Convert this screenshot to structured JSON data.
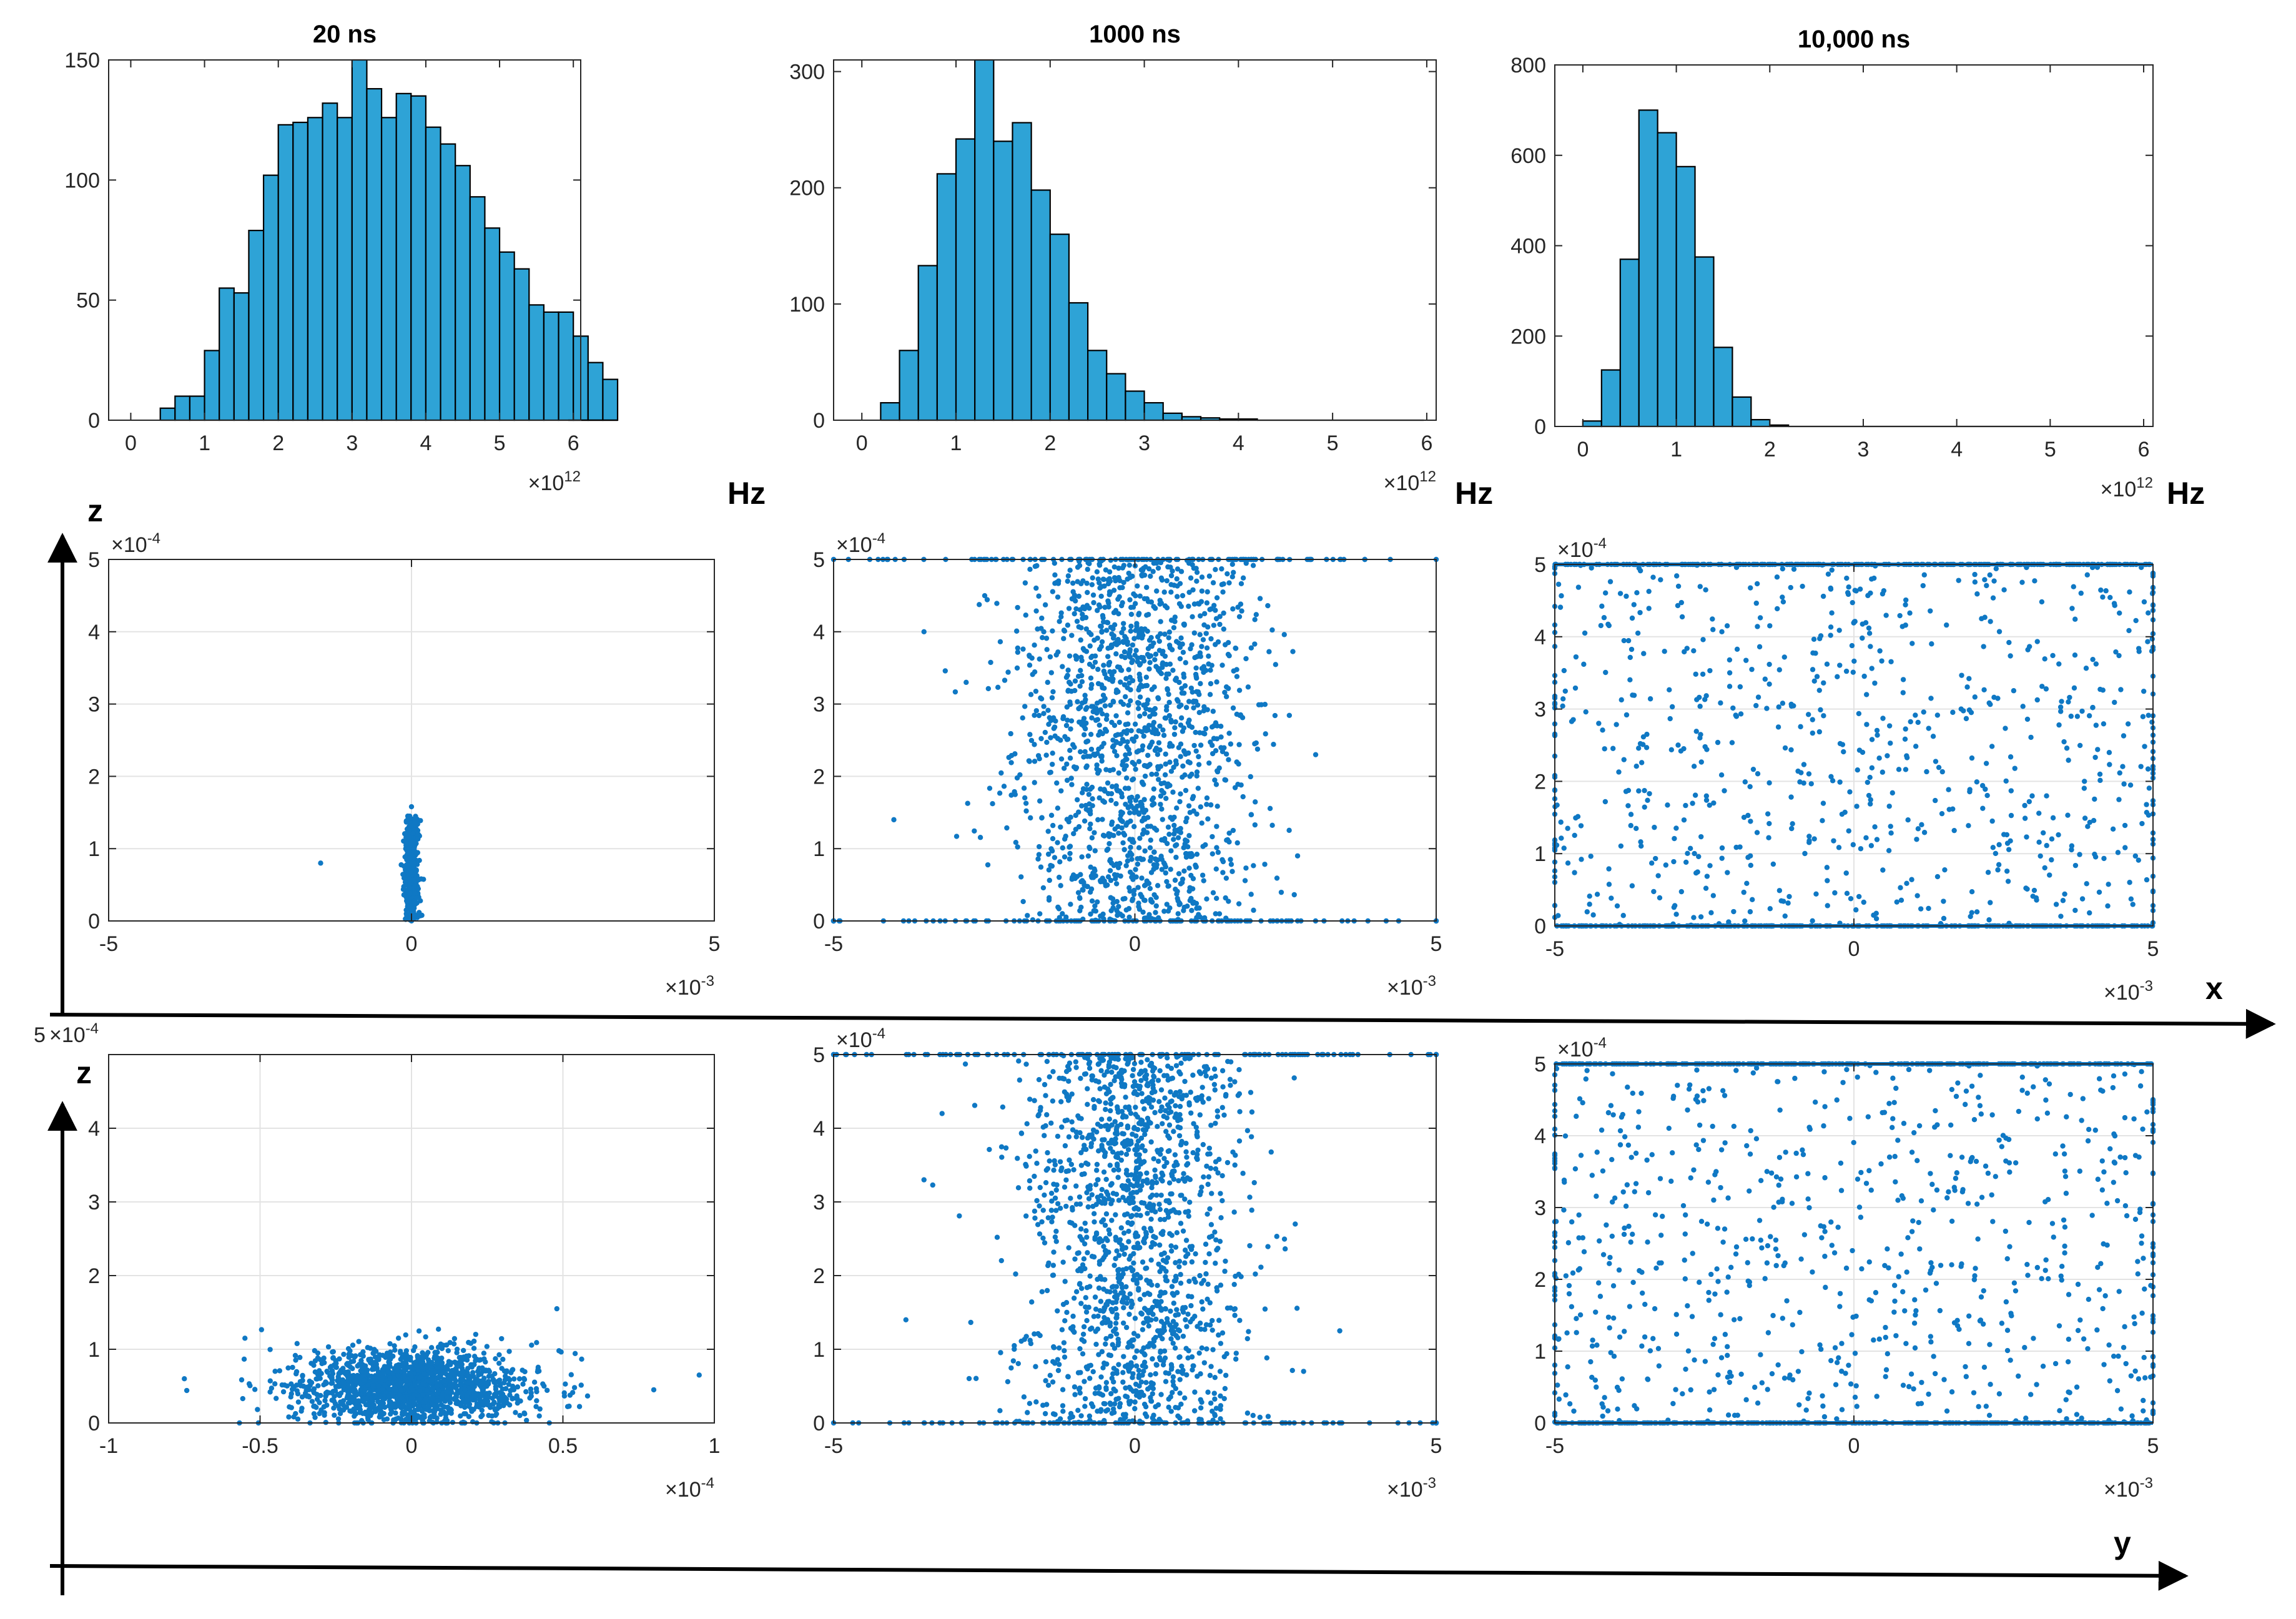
{
  "figure": {
    "unit_label": "Hz",
    "row_labels": {
      "x_axis": "x",
      "y_axis": "y",
      "z_axis": "z"
    }
  },
  "colors": {
    "bar_fill": "#2ea3d6",
    "point": "#0f78c4",
    "grid": "#e3e3e3",
    "frame": "#262626"
  },
  "chart_data": [
    {
      "id": "h20",
      "type": "bar",
      "title": "20 ns",
      "xlabel": "",
      "ylabel": "",
      "xlim": [
        -0.3,
        6.1
      ],
      "ylim": [
        0,
        150
      ],
      "bin_start": 0.4,
      "bin_width": 0.2,
      "values": [
        5,
        10,
        10,
        29,
        55,
        53,
        79,
        102,
        123,
        124,
        126,
        132,
        126,
        150,
        138,
        126,
        136,
        135,
        122,
        115,
        106,
        93,
        80,
        70,
        63,
        48,
        45,
        45,
        35,
        24,
        17
      ],
      "xticks": [
        0,
        1,
        2,
        3,
        4,
        5,
        6
      ],
      "yticks": [
        0,
        50,
        100,
        150
      ],
      "xticklabels": [
        "0",
        "1",
        "2",
        "3",
        "4",
        "5",
        "6"
      ],
      "yticklabels": [
        "0",
        "50",
        "100",
        "150"
      ],
      "x_multiplier": {
        "base": "×10",
        "exp": "12"
      },
      "grid": false
    },
    {
      "id": "h1000",
      "type": "bar",
      "title": "1000 ns",
      "xlabel": "",
      "ylabel": "",
      "xlim": [
        -0.3,
        6.1
      ],
      "ylim": [
        0,
        310
      ],
      "bin_start": 0.2,
      "bin_width": 0.2,
      "values": [
        15,
        60,
        133,
        212,
        242,
        310,
        240,
        256,
        198,
        160,
        101,
        60,
        40,
        25,
        15,
        6,
        3,
        2,
        1,
        1
      ],
      "xticks": [
        0,
        1,
        2,
        3,
        4,
        5,
        6
      ],
      "yticks": [
        0,
        100,
        200,
        300
      ],
      "xticklabels": [
        "0",
        "1",
        "2",
        "3",
        "4",
        "5",
        "6"
      ],
      "yticklabels": [
        "0",
        "100",
        "200",
        "300"
      ],
      "x_multiplier": {
        "base": "×10",
        "exp": "12"
      },
      "grid": false
    },
    {
      "id": "h10000",
      "type": "bar",
      "title": "10,000 ns",
      "xlabel": "",
      "ylabel": "",
      "xlim": [
        -0.3,
        6.1
      ],
      "ylim": [
        0,
        800
      ],
      "bin_start": 0.0,
      "bin_width": 0.2,
      "values": [
        12,
        125,
        370,
        700,
        650,
        575,
        375,
        175,
        65,
        15,
        3
      ],
      "xticks": [
        0,
        1,
        2,
        3,
        4,
        5,
        6
      ],
      "yticks": [
        0,
        200,
        400,
        600,
        800
      ],
      "xticklabels": [
        "0",
        "1",
        "2",
        "3",
        "4",
        "5",
        "6"
      ],
      "yticklabels": [
        "0",
        "200",
        "400",
        "600",
        "800"
      ],
      "x_multiplier": {
        "base": "×10",
        "exp": "12"
      },
      "grid": false
    },
    {
      "id": "xz20",
      "type": "scatter",
      "title": "",
      "xlabel": "x",
      "ylabel": "z",
      "xlim": [
        -5,
        5
      ],
      "ylim": [
        0,
        5
      ],
      "xticks": [
        -5,
        0,
        5
      ],
      "yticks": [
        0,
        1,
        2,
        3,
        4,
        5
      ],
      "xticklabels": [
        "-5",
        "0",
        "5"
      ],
      "yticklabels": [
        "0",
        "1",
        "2",
        "3",
        "4",
        "5"
      ],
      "x_multiplier": {
        "base": "×10",
        "exp": "-3"
      },
      "y_multiplier": {
        "base": "×10",
        "exp": "-4"
      },
      "grid": true,
      "distribution": {
        "n": 420,
        "x_center": 0,
        "x_sigma": 0.06,
        "z_max": 1.45,
        "z_mode": "uniform_low",
        "outliers": [
          [
            -1.5,
            0.8
          ],
          [
            0,
            1.58
          ]
        ]
      }
    },
    {
      "id": "xz1000",
      "type": "scatter",
      "title": "",
      "xlabel": "x",
      "ylabel": "z",
      "xlim": [
        -5,
        5
      ],
      "ylim": [
        0,
        5
      ],
      "xticks": [
        -5,
        0,
        5
      ],
      "yticks": [
        0,
        1,
        2,
        3,
        4,
        5
      ],
      "xticklabels": [
        "-5",
        "0",
        "5"
      ],
      "yticklabels": [
        "0",
        "1",
        "2",
        "3",
        "4",
        "5"
      ],
      "x_multiplier": {
        "base": "×10",
        "exp": "-3"
      },
      "y_multiplier": {
        "base": "×10",
        "exp": "-4"
      },
      "grid": true,
      "distribution": {
        "n": 1500,
        "x_center": 0,
        "x_sigma": 0.95,
        "z_mode": "uniform",
        "boundary_points": 120,
        "outliers": [
          [
            -3.5,
            4.0
          ],
          [
            -4.0,
            1.4
          ],
          [
            3.0,
            2.3
          ],
          [
            -2.8,
            3.3
          ],
          [
            2.7,
            0.9
          ]
        ]
      }
    },
    {
      "id": "xz10000",
      "type": "scatter",
      "title": "",
      "xlabel": "x",
      "ylabel": "z",
      "xlim": [
        -5,
        5
      ],
      "ylim": [
        0,
        5
      ],
      "xticks": [
        -5,
        0,
        5
      ],
      "yticks": [
        0,
        1,
        2,
        3,
        4,
        5
      ],
      "xticklabels": [
        "-5",
        "0",
        "5"
      ],
      "yticklabels": [
        "0",
        "1",
        "2",
        "3",
        "4",
        "5"
      ],
      "x_multiplier": {
        "base": "×10",
        "exp": "-3"
      },
      "y_multiplier": {
        "base": "×10",
        "exp": "-4"
      },
      "grid": true,
      "distribution": {
        "n": 700,
        "x_mode": "uniform",
        "z_mode": "uniform",
        "boundary_points": 260,
        "outliers": []
      }
    },
    {
      "id": "yz20",
      "type": "scatter",
      "title": "",
      "xlabel": "y",
      "ylabel": "z",
      "xlim": [
        -1,
        1
      ],
      "ylim": [
        0,
        5
      ],
      "xticks": [
        -1,
        -0.5,
        0,
        0.5,
        1
      ],
      "yticks": [
        0,
        1,
        2,
        3,
        4
      ],
      "xticklabels": [
        "-1",
        "-0.5",
        "0",
        "0.5",
        "1"
      ],
      "yticklabels": [
        "0",
        "1",
        "2",
        "3",
        "4"
      ],
      "top_label": "5",
      "x_multiplier": {
        "base": "×10",
        "exp": "-4"
      },
      "y_multiplier": {
        "base": "×10",
        "exp": "-4"
      },
      "grid": true,
      "distribution": {
        "n": 1700,
        "x_center": 0,
        "x_sigma": 0.19,
        "z_center": 0.5,
        "z_sigma": 0.25,
        "z_mode": "normal",
        "outliers": [
          [
            0.95,
            0.65
          ],
          [
            -0.75,
            0.6
          ],
          [
            0.48,
            1.55
          ],
          [
            -0.55,
            1.15
          ],
          [
            0.8,
            0.45
          ]
        ]
      }
    },
    {
      "id": "yz1000",
      "type": "scatter",
      "title": "",
      "xlabel": "y",
      "ylabel": "z",
      "xlim": [
        -5,
        5
      ],
      "ylim": [
        0,
        5
      ],
      "xticks": [
        -5,
        0,
        5
      ],
      "yticks": [
        0,
        1,
        2,
        3,
        4,
        5
      ],
      "xticklabels": [
        "-5",
        "0",
        "5"
      ],
      "yticklabels": [
        "0",
        "1",
        "2",
        "3",
        "4",
        "5"
      ],
      "x_multiplier": {
        "base": "×10",
        "exp": "-3"
      },
      "y_multiplier": {
        "base": "×10",
        "exp": "-4"
      },
      "grid": true,
      "distribution": {
        "n": 1500,
        "x_center": 0,
        "x_sigma": 0.9,
        "z_mode": "uniform",
        "boundary_points": 120,
        "outliers": [
          [
            -3.8,
            1.4
          ],
          [
            -3.5,
            3.3
          ],
          [
            3.4,
            1.25
          ],
          [
            2.8,
            0.7
          ],
          [
            -3.2,
            4.2
          ]
        ]
      }
    },
    {
      "id": "yz10000",
      "type": "scatter",
      "title": "",
      "xlabel": "y",
      "ylabel": "z",
      "xlim": [
        -5,
        5
      ],
      "ylim": [
        0,
        5
      ],
      "xticks": [
        -5,
        0,
        5
      ],
      "yticks": [
        0,
        1,
        2,
        3,
        4,
        5
      ],
      "xticklabels": [
        "-5",
        "0",
        "5"
      ],
      "yticklabels": [
        "0",
        "1",
        "2",
        "3",
        "4",
        "5"
      ],
      "x_multiplier": {
        "base": "×10",
        "exp": "-3"
      },
      "y_multiplier": {
        "base": "×10",
        "exp": "-4"
      },
      "grid": true,
      "distribution": {
        "n": 700,
        "x_mode": "uniform",
        "z_mode": "uniform",
        "boundary_points": 260,
        "outliers": []
      }
    }
  ]
}
